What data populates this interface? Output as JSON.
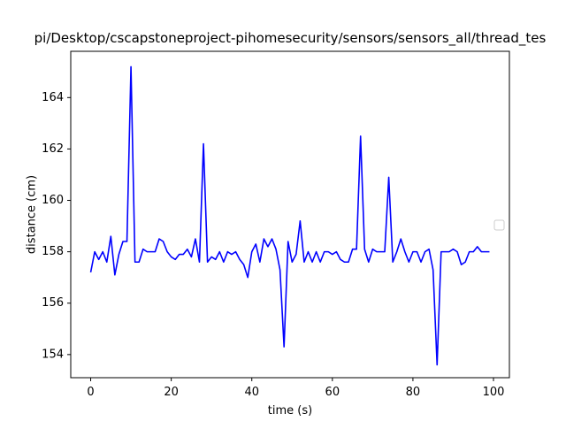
{
  "window": {
    "title": "pi/Desktop/cscapstoneproject-pihomesecurity/sensors/sensors_all/thread_tes"
  },
  "chart_data": {
    "type": "line",
    "title": "pi/Desktop/cscapstoneproject-pihomesecurity/sensors/sensors_all/thread_tes",
    "xlabel": "time (s)",
    "ylabel": "distance (cm)",
    "xlim": [
      -4.95,
      103.95
    ],
    "ylim": [
      153.1,
      165.8
    ],
    "xticks": [
      0,
      20,
      40,
      60,
      80,
      100
    ],
    "yticks": [
      154,
      156,
      158,
      160,
      162,
      164
    ],
    "xtick_labels": [
      "0",
      "20",
      "40",
      "60",
      "80",
      "100"
    ],
    "ytick_labels": [
      "154",
      "156",
      "158",
      "160",
      "162",
      "164"
    ],
    "grid": false,
    "legend": {
      "placement": "right",
      "entries": []
    },
    "series": [
      {
        "color": "#0000ff",
        "x": [
          0,
          1,
          2,
          3,
          4,
          5,
          6,
          7,
          8,
          9,
          10,
          11,
          12,
          13,
          14,
          15,
          16,
          17,
          18,
          19,
          20,
          21,
          22,
          23,
          24,
          25,
          26,
          27,
          28,
          29,
          30,
          31,
          32,
          33,
          34,
          35,
          36,
          37,
          38,
          39,
          40,
          41,
          42,
          43,
          44,
          45,
          46,
          47,
          48,
          49,
          50,
          51,
          52,
          53,
          54,
          55,
          56,
          57,
          58,
          59,
          60,
          61,
          62,
          63,
          64,
          65,
          66,
          67,
          68,
          69,
          70,
          71,
          72,
          73,
          74,
          75,
          76,
          77,
          78,
          79,
          80,
          81,
          82,
          83,
          84,
          85,
          86,
          87,
          88,
          89,
          90,
          91,
          92,
          93,
          94,
          95,
          96,
          97,
          98,
          99
        ],
        "values": [
          157.2,
          158.0,
          157.7,
          158.0,
          157.6,
          158.6,
          157.1,
          157.9,
          158.4,
          158.4,
          165.2,
          157.6,
          157.6,
          158.1,
          158.0,
          158.0,
          158.0,
          158.5,
          158.4,
          158.0,
          157.8,
          157.7,
          157.9,
          157.9,
          158.1,
          157.8,
          158.5,
          157.6,
          162.2,
          157.6,
          157.8,
          157.7,
          158.0,
          157.6,
          158.0,
          157.9,
          158.0,
          157.7,
          157.5,
          157.0,
          158.0,
          158.3,
          157.6,
          158.5,
          158.2,
          158.5,
          158.1,
          157.3,
          154.3,
          158.4,
          157.6,
          157.9,
          159.2,
          157.6,
          158.0,
          157.6,
          158.0,
          157.6,
          158.0,
          158.0,
          157.9,
          158.0,
          157.7,
          157.6,
          157.6,
          158.1,
          158.1,
          162.5,
          158.1,
          157.6,
          158.1,
          158.0,
          158.0,
          158.0,
          160.9,
          157.6,
          158.0,
          158.5,
          158.0,
          157.6,
          158.0,
          158.0,
          157.6,
          158.0,
          158.1,
          157.3,
          153.6,
          158.0,
          158.0,
          158.0,
          158.1,
          158.0,
          157.5,
          157.6,
          158.0,
          158.0,
          158.2,
          158.0,
          158.0,
          158.0
        ]
      }
    ]
  }
}
